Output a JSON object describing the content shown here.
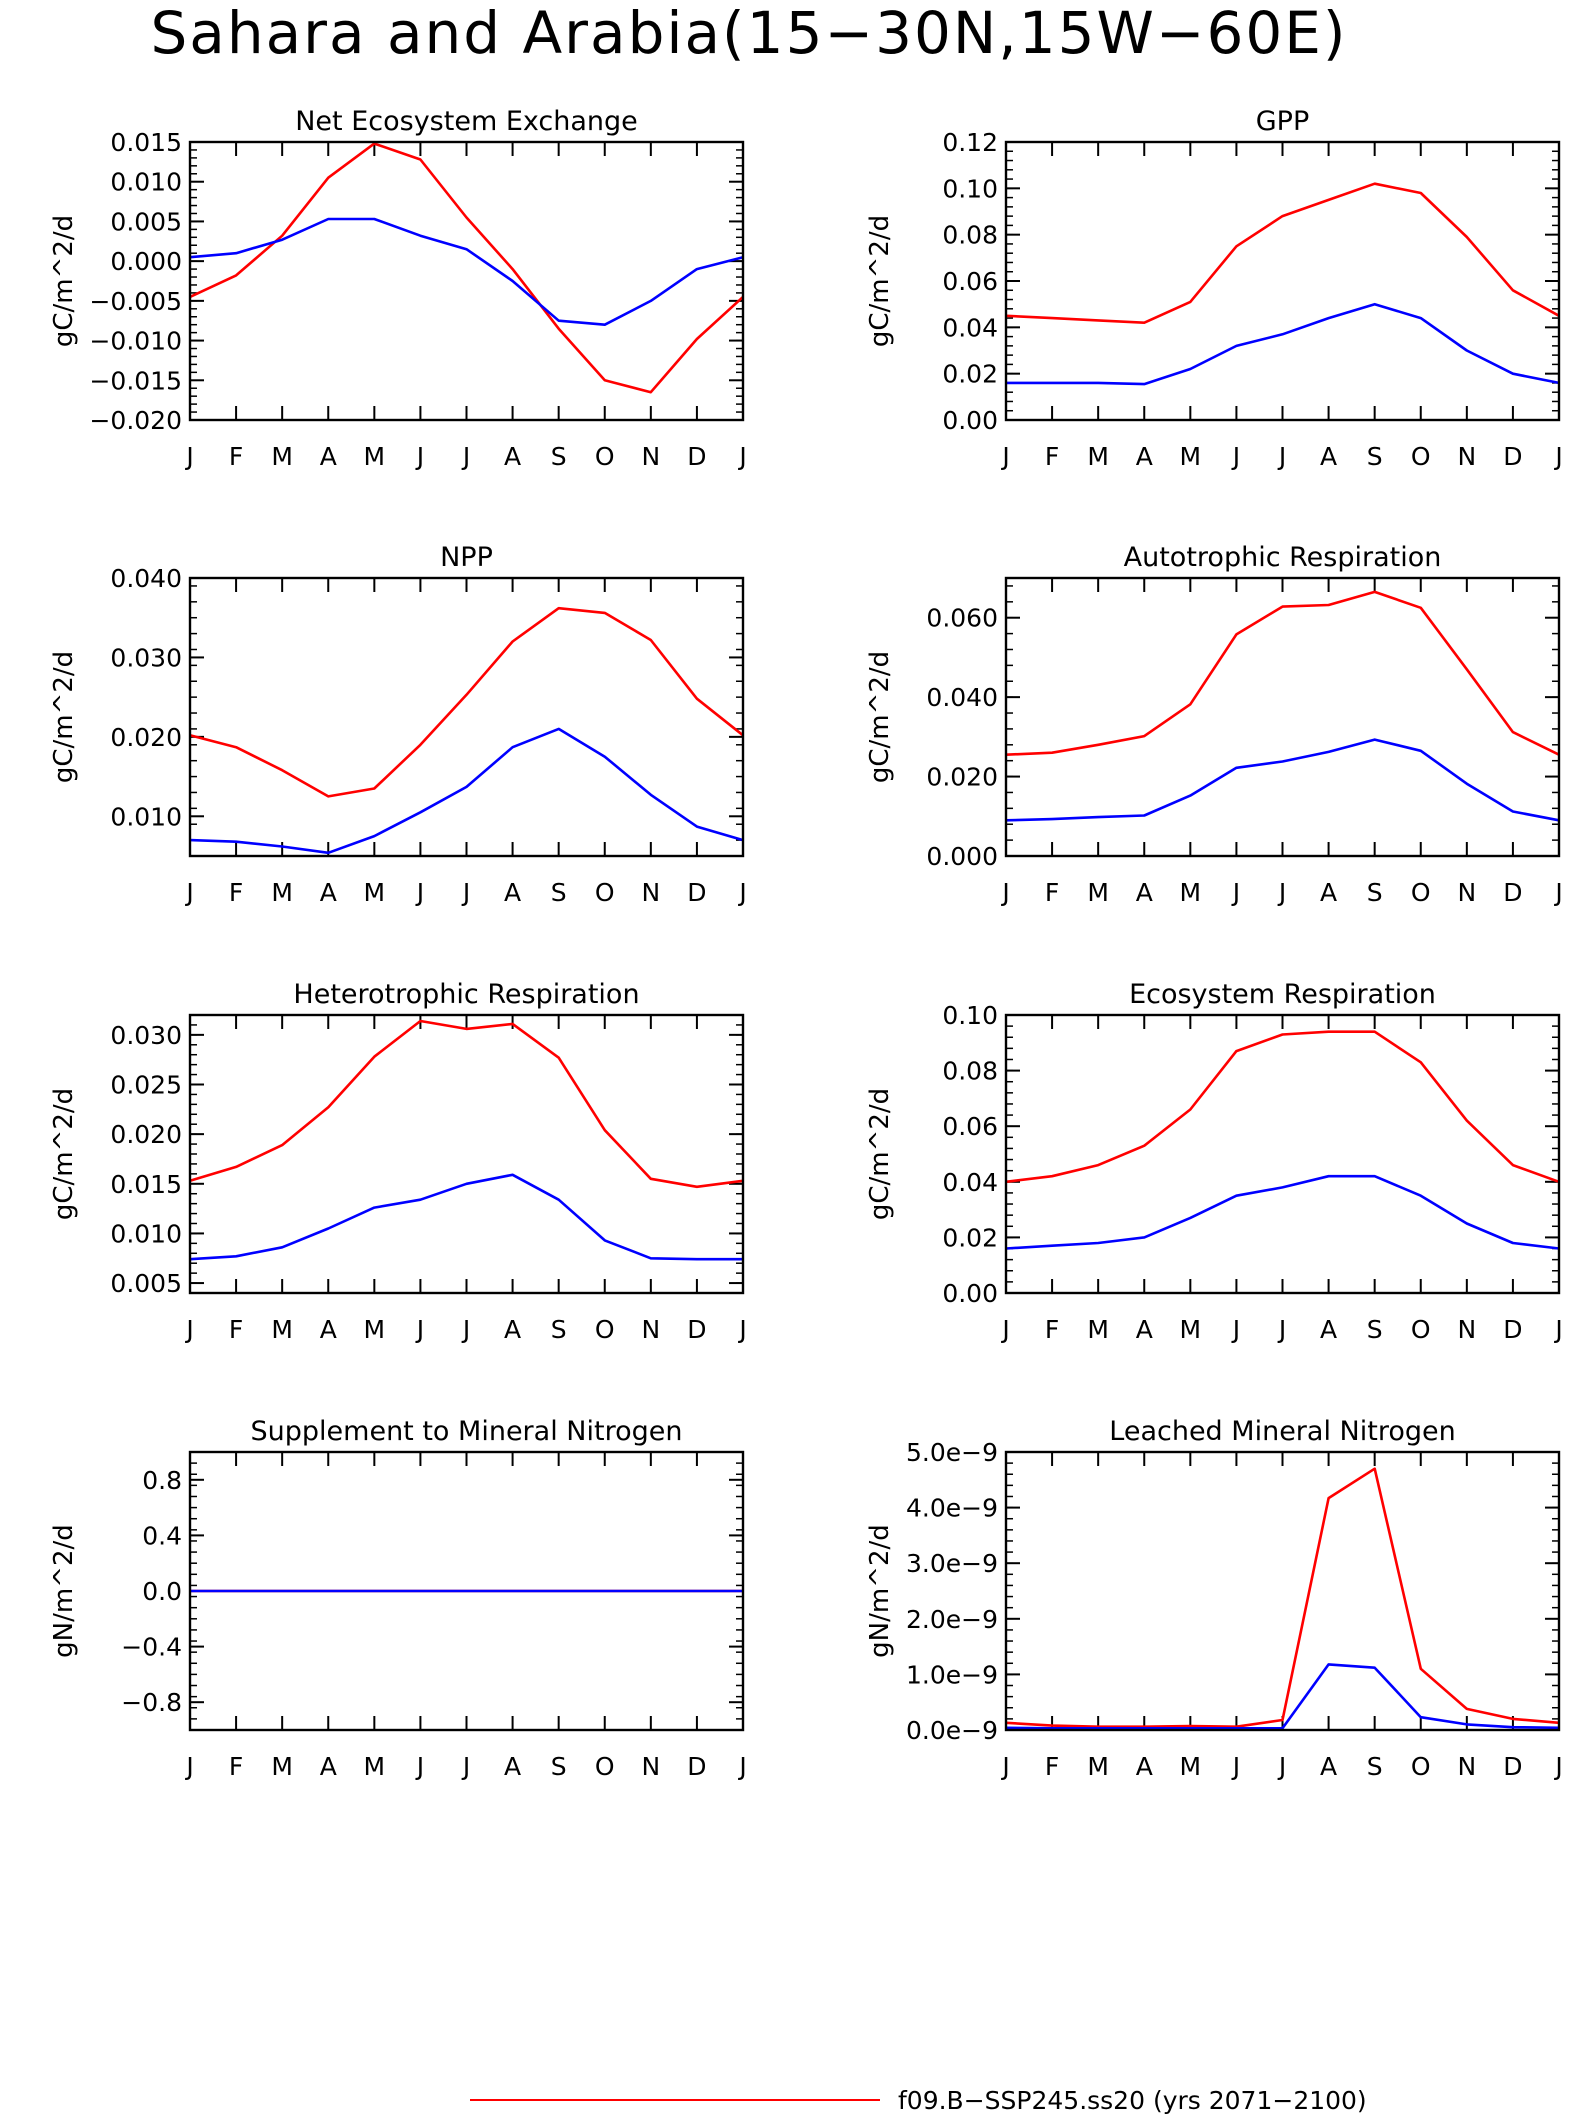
{
  "figure": {
    "title": "Sahara and Arabia(15−30N,15W−60E)",
    "legend": [
      {
        "label": "f09.B−SSP245.ss20 (yrs 2071−2100)",
        "color": "#ff0000"
      }
    ]
  },
  "chart_data": [
    {
      "type": "line",
      "title": "Net Ecosystem Exchange",
      "ylabel": "gC/m^2/d",
      "categories": [
        "J",
        "F",
        "M",
        "A",
        "M",
        "J",
        "J",
        "A",
        "S",
        "O",
        "N",
        "D",
        "J"
      ],
      "ylim": [
        -0.02,
        0.015
      ],
      "yticks": [
        "0.015",
        "0.010",
        "0.005",
        "0.000",
        "−0.005",
        "−0.010",
        "−0.015",
        "−0.020"
      ],
      "ytick_values": [
        0.015,
        0.01,
        0.005,
        0.0,
        -0.005,
        -0.01,
        -0.015,
        -0.02
      ],
      "series": [
        {
          "color": "#ff0000",
          "values": [
            -0.0045,
            -0.0018,
            0.0032,
            0.0105,
            0.0148,
            0.0128,
            0.0055,
            -0.001,
            -0.0085,
            -0.015,
            -0.0165,
            -0.0098,
            -0.0045
          ]
        },
        {
          "color": "#0000ff",
          "values": [
            0.0005,
            0.001,
            0.0027,
            0.0053,
            0.0053,
            0.0032,
            0.0015,
            -0.0025,
            -0.0075,
            -0.008,
            -0.005,
            -0.001,
            0.0005
          ]
        }
      ]
    },
    {
      "type": "line",
      "title": "GPP",
      "ylabel": "gC/m^2/d",
      "categories": [
        "J",
        "F",
        "M",
        "A",
        "M",
        "J",
        "J",
        "A",
        "S",
        "O",
        "N",
        "D",
        "J"
      ],
      "ylim": [
        0,
        0.12
      ],
      "yticks": [
        "0.12",
        "0.10",
        "0.08",
        "0.06",
        "0.04",
        "0.02",
        "0.00"
      ],
      "ytick_values": [
        0.12,
        0.1,
        0.08,
        0.06,
        0.04,
        0.02,
        0.0
      ],
      "series": [
        {
          "color": "#ff0000",
          "values": [
            0.045,
            0.044,
            0.043,
            0.042,
            0.051,
            0.075,
            0.088,
            0.095,
            0.102,
            0.098,
            0.079,
            0.056,
            0.045
          ]
        },
        {
          "color": "#0000ff",
          "values": [
            0.016,
            0.016,
            0.016,
            0.0155,
            0.022,
            0.032,
            0.037,
            0.044,
            0.05,
            0.044,
            0.03,
            0.02,
            0.016
          ]
        }
      ]
    },
    {
      "type": "line",
      "title": "NPP",
      "ylabel": "gC/m^2/d",
      "categories": [
        "J",
        "F",
        "M",
        "A",
        "M",
        "J",
        "J",
        "A",
        "S",
        "O",
        "N",
        "D",
        "J"
      ],
      "ylim": [
        0.005,
        0.04
      ],
      "yticks": [
        "0.040",
        "0.030",
        "0.020",
        "0.010"
      ],
      "ytick_values": [
        0.04,
        0.03,
        0.02,
        0.01
      ],
      "series": [
        {
          "color": "#ff0000",
          "values": [
            0.0202,
            0.0187,
            0.0158,
            0.0125,
            0.0135,
            0.019,
            0.0253,
            0.032,
            0.0362,
            0.0356,
            0.0322,
            0.0248,
            0.0202
          ]
        },
        {
          "color": "#0000ff",
          "values": [
            0.007,
            0.0068,
            0.0062,
            0.0054,
            0.0075,
            0.0105,
            0.0137,
            0.0187,
            0.021,
            0.0175,
            0.0127,
            0.0087,
            0.007
          ]
        }
      ]
    },
    {
      "type": "line",
      "title": "Autotrophic Respiration",
      "ylabel": "gC/m^2/d",
      "categories": [
        "J",
        "F",
        "M",
        "A",
        "M",
        "J",
        "J",
        "A",
        "S",
        "O",
        "N",
        "D",
        "J"
      ],
      "ylim": [
        0,
        0.07
      ],
      "yticks": [
        "0.060",
        "0.040",
        "0.020",
        "0.000"
      ],
      "ytick_values": [
        0.06,
        0.04,
        0.02,
        0.0
      ],
      "series": [
        {
          "color": "#ff0000",
          "values": [
            0.0255,
            0.026,
            0.028,
            0.0302,
            0.0382,
            0.0558,
            0.0628,
            0.0632,
            0.0665,
            0.0625,
            0.047,
            0.0312,
            0.0255
          ]
        },
        {
          "color": "#0000ff",
          "values": [
            0.009,
            0.0093,
            0.0098,
            0.0102,
            0.0152,
            0.0222,
            0.0238,
            0.0262,
            0.0293,
            0.0265,
            0.0182,
            0.0112,
            0.009
          ]
        }
      ]
    },
    {
      "type": "line",
      "title": "Heterotrophic Respiration",
      "ylabel": "gC/m^2/d",
      "categories": [
        "J",
        "F",
        "M",
        "A",
        "M",
        "J",
        "J",
        "A",
        "S",
        "O",
        "N",
        "D",
        "J"
      ],
      "ylim": [
        0.004,
        0.032
      ],
      "yticks": [
        "0.030",
        "0.025",
        "0.020",
        "0.015",
        "0.010",
        "0.005"
      ],
      "ytick_values": [
        0.03,
        0.025,
        0.02,
        0.015,
        0.01,
        0.005
      ],
      "series": [
        {
          "color": "#ff0000",
          "values": [
            0.0153,
            0.0167,
            0.0189,
            0.0227,
            0.0278,
            0.0314,
            0.0306,
            0.0311,
            0.0277,
            0.0204,
            0.0155,
            0.0147,
            0.0153
          ]
        },
        {
          "color": "#0000ff",
          "values": [
            0.0074,
            0.0077,
            0.0086,
            0.0105,
            0.0126,
            0.0134,
            0.015,
            0.0159,
            0.0134,
            0.0093,
            0.0075,
            0.0074,
            0.0074
          ]
        }
      ]
    },
    {
      "type": "line",
      "title": "Ecosystem Respiration",
      "ylabel": "gC/m^2/d",
      "categories": [
        "J",
        "F",
        "M",
        "A",
        "M",
        "J",
        "J",
        "A",
        "S",
        "O",
        "N",
        "D",
        "J"
      ],
      "ylim": [
        0,
        0.1
      ],
      "yticks": [
        "0.10",
        "0.08",
        "0.06",
        "0.04",
        "0.02",
        "0.00"
      ],
      "ytick_values": [
        0.1,
        0.08,
        0.06,
        0.04,
        0.02,
        0.0
      ],
      "series": [
        {
          "color": "#ff0000",
          "values": [
            0.04,
            0.042,
            0.046,
            0.053,
            0.066,
            0.087,
            0.093,
            0.094,
            0.094,
            0.083,
            0.062,
            0.046,
            0.04
          ]
        },
        {
          "color": "#0000ff",
          "values": [
            0.016,
            0.017,
            0.018,
            0.02,
            0.027,
            0.035,
            0.038,
            0.042,
            0.042,
            0.035,
            0.025,
            0.018,
            0.016
          ]
        }
      ]
    },
    {
      "type": "line",
      "title": "Supplement to Mineral Nitrogen",
      "ylabel": "gN/m^2/d",
      "categories": [
        "J",
        "F",
        "M",
        "A",
        "M",
        "J",
        "J",
        "A",
        "S",
        "O",
        "N",
        "D",
        "J"
      ],
      "ylim": [
        -1.0,
        1.0
      ],
      "yticks": [
        "0.8",
        "0.4",
        "0.0",
        "−0.4",
        "−0.8"
      ],
      "ytick_values": [
        0.8,
        0.4,
        0.0,
        -0.4,
        -0.8
      ],
      "series": [
        {
          "color": "#ff0000",
          "values": [
            0,
            0,
            0,
            0,
            0,
            0,
            0,
            0,
            0,
            0,
            0,
            0,
            0
          ]
        },
        {
          "color": "#0000ff",
          "values": [
            0,
            0,
            0,
            0,
            0,
            0,
            0,
            0,
            0,
            0,
            0,
            0,
            0
          ]
        }
      ]
    },
    {
      "type": "line",
      "title": "Leached Mineral Nitrogen",
      "ylabel": "gN/m^2/d",
      "categories": [
        "J",
        "F",
        "M",
        "A",
        "M",
        "J",
        "J",
        "A",
        "S",
        "O",
        "N",
        "D",
        "J"
      ],
      "ylim": [
        0,
        5e-09
      ],
      "yticks": [
        "5.0e−9",
        "4.0e−9",
        "3.0e−9",
        "2.0e−9",
        "1.0e−9",
        "0.0e−9"
      ],
      "ytick_values": [
        5e-09,
        4e-09,
        3e-09,
        2e-09,
        1e-09,
        0.0
      ],
      "series": [
        {
          "color": "#ff0000",
          "values": [
            1.3e-10,
            8e-11,
            6e-11,
            6e-11,
            7e-11,
            6e-11,
            1.8e-10,
            4.17e-09,
            4.7e-09,
            1.1e-09,
            3.8e-10,
            2e-10,
            1.3e-10
          ]
        },
        {
          "color": "#0000ff",
          "values": [
            4e-11,
            3e-11,
            3e-11,
            3e-11,
            3e-11,
            3e-11,
            3e-11,
            1.18e-09,
            1.12e-09,
            2.3e-10,
            1e-10,
            5e-11,
            4e-11
          ]
        }
      ]
    }
  ]
}
